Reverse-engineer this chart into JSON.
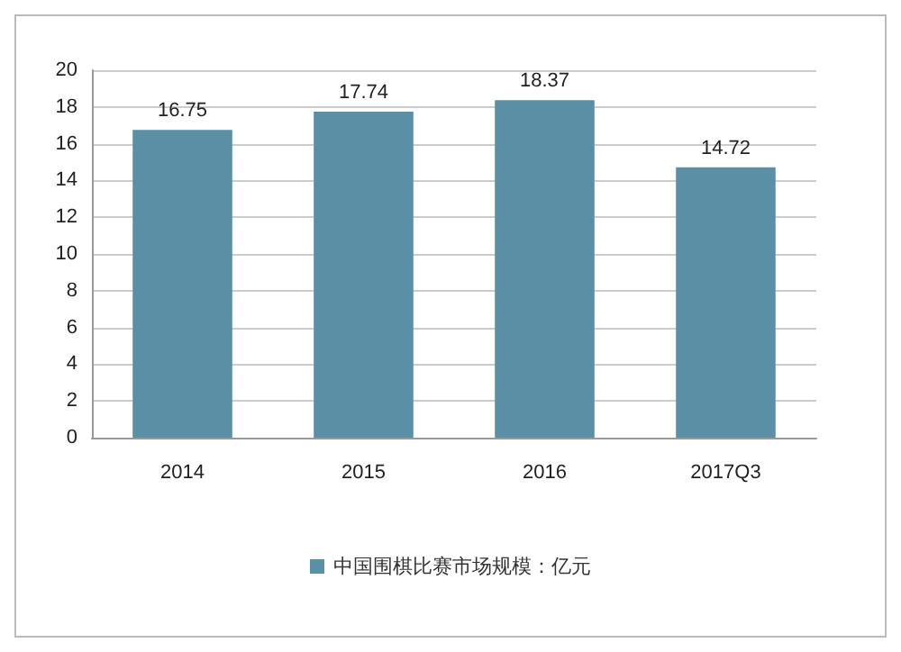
{
  "chart_data": {
    "type": "bar",
    "categories": [
      "2014",
      "2015",
      "2016",
      "2017Q3"
    ],
    "series": [
      {
        "name": "中国围棋比赛市场规模：亿元",
        "color": "#5b8fa6",
        "values": [
          16.75,
          17.74,
          18.37,
          14.72
        ]
      }
    ],
    "ylim": [
      0,
      20
    ],
    "yticks": [
      0,
      2,
      4,
      6,
      8,
      10,
      12,
      14,
      16,
      18,
      20
    ],
    "grid": "y",
    "legend": "bottom",
    "data_labels": true
  }
}
